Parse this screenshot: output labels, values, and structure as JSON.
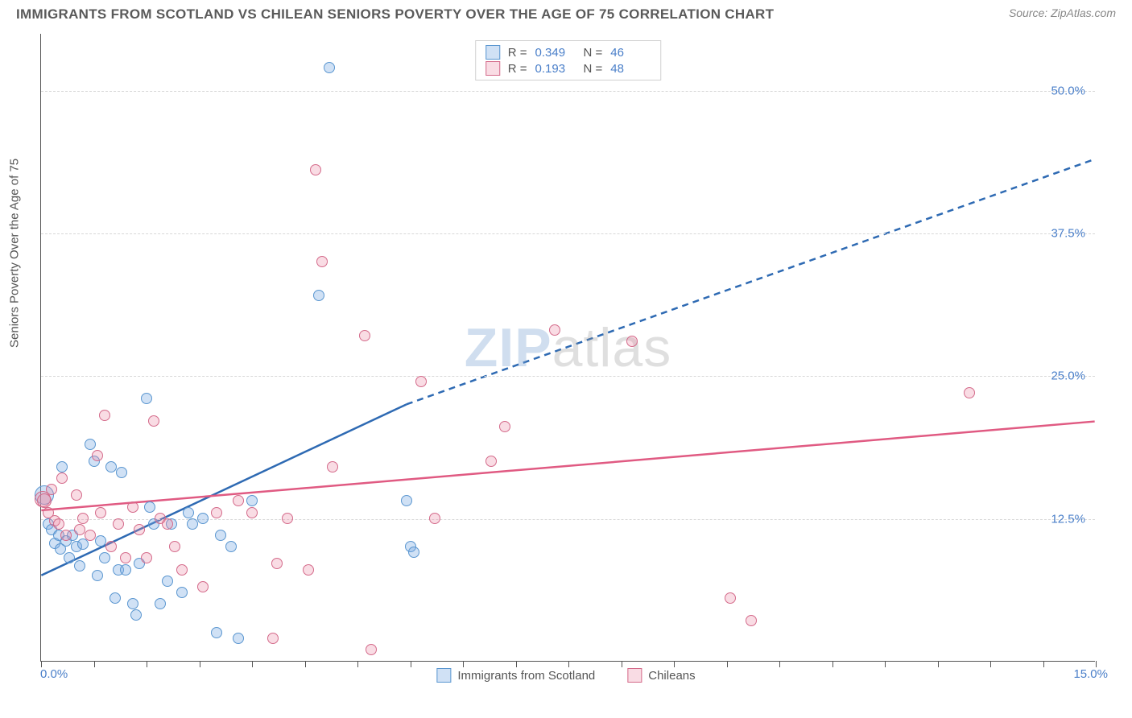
{
  "title": "IMMIGRANTS FROM SCOTLAND VS CHILEAN SENIORS POVERTY OVER THE AGE OF 75 CORRELATION CHART",
  "source": "Source: ZipAtlas.com",
  "ylabel": "Seniors Poverty Over the Age of 75",
  "watermarkA": "ZIP",
  "watermarkB": "atlas",
  "axes": {
    "xlim": [
      0,
      15
    ],
    "ylim": [
      0,
      55
    ],
    "xtick_positions": [
      0,
      0.75,
      1.5,
      2.25,
      3.0,
      3.75,
      4.5,
      5.25,
      6.0,
      6.75,
      7.5,
      8.25,
      9.0,
      9.75,
      10.5,
      11.25,
      12.0,
      12.75,
      13.5,
      14.25,
      15.0
    ],
    "ytick_labels": [
      {
        "v": 12.5,
        "label": "12.5%"
      },
      {
        "v": 25.0,
        "label": "25.0%"
      },
      {
        "v": 37.5,
        "label": "37.5%"
      },
      {
        "v": 50.0,
        "label": "50.0%"
      }
    ],
    "x_left_label": "0.0%",
    "x_right_label": "15.0%",
    "grid_color": "#d8d8d8",
    "label_color": "#4a7fc9",
    "label_fontsize": 15
  },
  "series": {
    "scotland": {
      "label": "Immigrants from Scotland",
      "fill": "rgba(120,170,225,0.35)",
      "stroke": "#5a96d0",
      "trend_stroke": "#2e6ab3",
      "r_value": "0.349",
      "n_value": "46",
      "trend": {
        "x1": 0,
        "y1": 7.5,
        "x2": 5.2,
        "y2": 22.5,
        "dash_to_x": 15,
        "dash_to_y": 44
      },
      "points": [
        {
          "x": 0.05,
          "y": 14.5,
          "r": 12
        },
        {
          "x": 0.1,
          "y": 12.0,
          "r": 7
        },
        {
          "x": 0.15,
          "y": 11.5,
          "r": 7
        },
        {
          "x": 0.2,
          "y": 10.3,
          "r": 7
        },
        {
          "x": 0.25,
          "y": 11.0,
          "r": 7
        },
        {
          "x": 0.28,
          "y": 9.8,
          "r": 7
        },
        {
          "x": 0.3,
          "y": 17.0,
          "r": 7
        },
        {
          "x": 0.35,
          "y": 10.5,
          "r": 7
        },
        {
          "x": 0.4,
          "y": 9.0,
          "r": 7
        },
        {
          "x": 0.45,
          "y": 11.0,
          "r": 7
        },
        {
          "x": 0.5,
          "y": 10.0,
          "r": 7
        },
        {
          "x": 0.55,
          "y": 8.3,
          "r": 7
        },
        {
          "x": 0.6,
          "y": 10.2,
          "r": 7
        },
        {
          "x": 0.7,
          "y": 19.0,
          "r": 7
        },
        {
          "x": 0.75,
          "y": 17.5,
          "r": 7
        },
        {
          "x": 0.8,
          "y": 7.5,
          "r": 7
        },
        {
          "x": 0.85,
          "y": 10.5,
          "r": 7
        },
        {
          "x": 0.9,
          "y": 9.0,
          "r": 7
        },
        {
          "x": 1.0,
          "y": 17.0,
          "r": 7
        },
        {
          "x": 1.05,
          "y": 5.5,
          "r": 7
        },
        {
          "x": 1.1,
          "y": 8.0,
          "r": 7
        },
        {
          "x": 1.15,
          "y": 16.5,
          "r": 7
        },
        {
          "x": 1.2,
          "y": 8.0,
          "r": 7
        },
        {
          "x": 1.3,
          "y": 5.0,
          "r": 7
        },
        {
          "x": 1.35,
          "y": 4.0,
          "r": 7
        },
        {
          "x": 1.4,
          "y": 8.5,
          "r": 7
        },
        {
          "x": 1.5,
          "y": 23.0,
          "r": 7
        },
        {
          "x": 1.55,
          "y": 13.5,
          "r": 7
        },
        {
          "x": 1.6,
          "y": 12.0,
          "r": 7
        },
        {
          "x": 1.7,
          "y": 5.0,
          "r": 7
        },
        {
          "x": 1.8,
          "y": 7.0,
          "r": 7
        },
        {
          "x": 1.85,
          "y": 12.0,
          "r": 7
        },
        {
          "x": 2.0,
          "y": 6.0,
          "r": 7
        },
        {
          "x": 2.1,
          "y": 13.0,
          "r": 7
        },
        {
          "x": 2.15,
          "y": 12.0,
          "r": 7
        },
        {
          "x": 2.3,
          "y": 12.5,
          "r": 7
        },
        {
          "x": 2.5,
          "y": 2.5,
          "r": 7
        },
        {
          "x": 2.55,
          "y": 11.0,
          "r": 7
        },
        {
          "x": 2.7,
          "y": 10.0,
          "r": 7
        },
        {
          "x": 2.8,
          "y": 2.0,
          "r": 7
        },
        {
          "x": 3.0,
          "y": 14.0,
          "r": 7
        },
        {
          "x": 3.95,
          "y": 32.0,
          "r": 7
        },
        {
          "x": 4.1,
          "y": 52.0,
          "r": 7
        },
        {
          "x": 5.2,
          "y": 14.0,
          "r": 7
        },
        {
          "x": 5.25,
          "y": 10.0,
          "r": 7
        },
        {
          "x": 5.3,
          "y": 9.5,
          "r": 7
        }
      ]
    },
    "chileans": {
      "label": "Chileans",
      "fill": "rgba(235,140,165,0.3)",
      "stroke": "#d46a8a",
      "trend_stroke": "#e05a82",
      "r_value": "0.193",
      "n_value": "48",
      "trend": {
        "x1": 0,
        "y1": 13.2,
        "x2": 15,
        "y2": 21.0
      },
      "points": [
        {
          "x": 0.02,
          "y": 14.2,
          "r": 10
        },
        {
          "x": 0.05,
          "y": 14.0,
          "r": 9
        },
        {
          "x": 0.1,
          "y": 13.0,
          "r": 7
        },
        {
          "x": 0.15,
          "y": 15.0,
          "r": 7
        },
        {
          "x": 0.2,
          "y": 12.3,
          "r": 7
        },
        {
          "x": 0.25,
          "y": 12.0,
          "r": 7
        },
        {
          "x": 0.3,
          "y": 16.0,
          "r": 7
        },
        {
          "x": 0.35,
          "y": 11.0,
          "r": 7
        },
        {
          "x": 0.5,
          "y": 14.5,
          "r": 7
        },
        {
          "x": 0.55,
          "y": 11.5,
          "r": 7
        },
        {
          "x": 0.6,
          "y": 12.5,
          "r": 7
        },
        {
          "x": 0.7,
          "y": 11.0,
          "r": 7
        },
        {
          "x": 0.8,
          "y": 18.0,
          "r": 7
        },
        {
          "x": 0.85,
          "y": 13.0,
          "r": 7
        },
        {
          "x": 0.9,
          "y": 21.5,
          "r": 7
        },
        {
          "x": 1.0,
          "y": 10.0,
          "r": 7
        },
        {
          "x": 1.1,
          "y": 12.0,
          "r": 7
        },
        {
          "x": 1.2,
          "y": 9.0,
          "r": 7
        },
        {
          "x": 1.3,
          "y": 13.5,
          "r": 7
        },
        {
          "x": 1.4,
          "y": 11.5,
          "r": 7
        },
        {
          "x": 1.5,
          "y": 9.0,
          "r": 7
        },
        {
          "x": 1.6,
          "y": 21.0,
          "r": 7
        },
        {
          "x": 1.7,
          "y": 12.5,
          "r": 7
        },
        {
          "x": 1.8,
          "y": 12.0,
          "r": 7
        },
        {
          "x": 1.9,
          "y": 10.0,
          "r": 7
        },
        {
          "x": 2.0,
          "y": 8.0,
          "r": 7
        },
        {
          "x": 2.3,
          "y": 6.5,
          "r": 7
        },
        {
          "x": 2.5,
          "y": 13.0,
          "r": 7
        },
        {
          "x": 2.8,
          "y": 14.0,
          "r": 7
        },
        {
          "x": 3.0,
          "y": 13.0,
          "r": 7
        },
        {
          "x": 3.3,
          "y": 2.0,
          "r": 7
        },
        {
          "x": 3.35,
          "y": 8.5,
          "r": 7
        },
        {
          "x": 3.5,
          "y": 12.5,
          "r": 7
        },
        {
          "x": 3.8,
          "y": 8.0,
          "r": 7
        },
        {
          "x": 3.9,
          "y": 43.0,
          "r": 7
        },
        {
          "x": 4.0,
          "y": 35.0,
          "r": 7
        },
        {
          "x": 4.15,
          "y": 17.0,
          "r": 7
        },
        {
          "x": 4.6,
          "y": 28.5,
          "r": 7
        },
        {
          "x": 4.7,
          "y": 1.0,
          "r": 7
        },
        {
          "x": 5.4,
          "y": 24.5,
          "r": 7
        },
        {
          "x": 5.6,
          "y": 12.5,
          "r": 7
        },
        {
          "x": 6.4,
          "y": 17.5,
          "r": 7
        },
        {
          "x": 6.6,
          "y": 20.5,
          "r": 7
        },
        {
          "x": 7.3,
          "y": 29.0,
          "r": 7
        },
        {
          "x": 8.4,
          "y": 28.0,
          "r": 7
        },
        {
          "x": 9.8,
          "y": 5.5,
          "r": 7
        },
        {
          "x": 10.1,
          "y": 3.5,
          "r": 7
        },
        {
          "x": 13.2,
          "y": 23.5,
          "r": 7
        }
      ]
    }
  },
  "stats_box": {
    "rows": [
      {
        "series": "scotland",
        "r_label": "R =",
        "n_label": "N ="
      },
      {
        "series": "chileans",
        "r_label": "R =",
        "n_label": "N ="
      }
    ]
  }
}
